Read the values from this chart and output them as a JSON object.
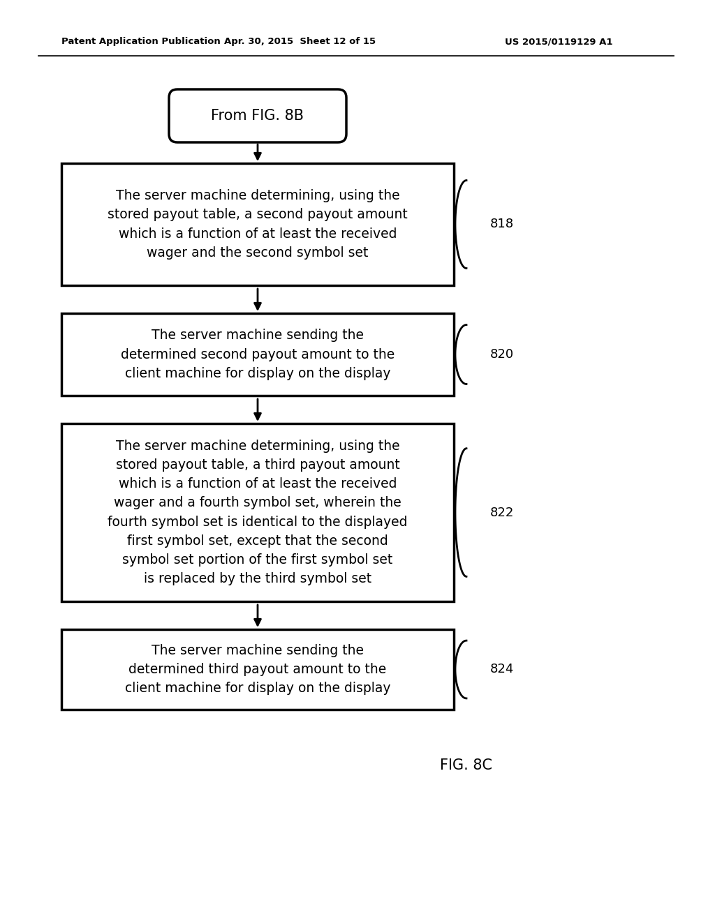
{
  "header_left": "Patent Application Publication",
  "header_mid": "Apr. 30, 2015  Sheet 12 of 15",
  "header_right": "US 2015/0119129 A1",
  "start_label": "From FIG. 8B",
  "boxes": [
    {
      "id": "818",
      "text": "The server machine determining, using the\nstored payout table, a second payout amount\nwhich is a function of at least the received\nwager and the second symbol set",
      "label": "818"
    },
    {
      "id": "820",
      "text": "The server machine sending the\ndetermined second payout amount to the\nclient machine for display on the display",
      "label": "820"
    },
    {
      "id": "822",
      "text": "The server machine determining, using the\nstored payout table, a third payout amount\nwhich is a function of at least the received\nwager and a fourth symbol set, wherein the\nfourth symbol set is identical to the displayed\nfirst symbol set, except that the second\nsymbol set portion of the first symbol set\nis replaced by the third symbol set",
      "label": "822"
    },
    {
      "id": "824",
      "text": "The server machine sending the\ndetermined third payout amount to the\nclient machine for display on the display",
      "label": "824"
    }
  ],
  "fig_label": "FIG. 8C",
  "background_color": "#ffffff",
  "box_edge_color": "#000000",
  "text_color": "#000000",
  "arrow_color": "#000000"
}
